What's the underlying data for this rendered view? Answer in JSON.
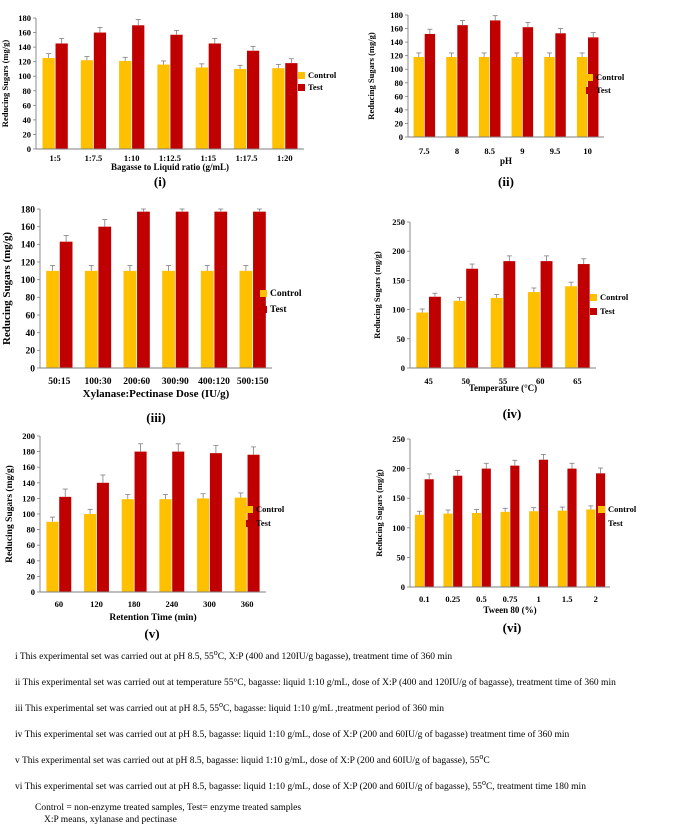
{
  "colors": {
    "control": "#FFC000",
    "test": "#C00000",
    "axis": "#7f7f7f",
    "grid": "#d0d0d0",
    "error": "#7f7f7f"
  },
  "chart_data": [
    {
      "id": "i",
      "type": "bar",
      "panel_label": "(i)",
      "xlabel": "Bagasse to Liquid ratio (g/mL)",
      "ylabel": "Reducing Sugars  (mg/g)",
      "categories": [
        "1:5",
        "1:7.5",
        "1:10",
        "1:12.5",
        "1:15",
        "1:17.5",
        "1:20"
      ],
      "ylim": [
        0,
        180
      ],
      "yticks": [
        0,
        20,
        40,
        60,
        80,
        100,
        120,
        140,
        160,
        180
      ],
      "series": [
        {
          "name": "Control",
          "values": [
            125,
            122,
            121,
            116,
            112,
            110,
            111
          ],
          "errors": [
            6,
            5,
            5,
            5,
            5,
            5,
            5
          ]
        },
        {
          "name": "Test",
          "values": [
            145,
            160,
            170,
            157,
            145,
            135,
            118
          ],
          "errors": [
            7,
            7,
            8,
            6,
            7,
            6,
            6
          ]
        }
      ],
      "legend": [
        "Control",
        "Test"
      ]
    },
    {
      "id": "ii",
      "type": "bar",
      "panel_label": "(ii)",
      "xlabel": "pH",
      "ylabel": "Reducing Sugars (mg/g)",
      "categories": [
        "7.5",
        "8",
        "8.5",
        "9",
        "9.5",
        "10"
      ],
      "ylim": [
        0,
        180
      ],
      "yticks": [
        0,
        20,
        40,
        60,
        80,
        100,
        120,
        140,
        160,
        180
      ],
      "series": [
        {
          "name": "Control",
          "values": [
            118,
            118,
            118,
            118,
            118,
            118
          ],
          "errors": [
            6,
            6,
            6,
            6,
            6,
            6
          ]
        },
        {
          "name": "Test",
          "values": [
            152,
            165,
            172,
            162,
            153,
            147
          ],
          "errors": [
            7,
            7,
            7,
            7,
            7,
            7
          ]
        }
      ],
      "legend": [
        "Control",
        "Test"
      ]
    },
    {
      "id": "iii",
      "type": "bar",
      "panel_label": "(iii)",
      "xlabel": "Xylanase:Pectinase Dose (IU/g)",
      "ylabel": "Reducing Sugars (mg/g)",
      "categories": [
        "50:15",
        "100:30",
        "200:60",
        "300:90",
        "400:120",
        "500:150"
      ],
      "ylim": [
        0,
        180
      ],
      "yticks": [
        0,
        20,
        40,
        60,
        80,
        100,
        120,
        140,
        160,
        180
      ],
      "series": [
        {
          "name": "Control",
          "values": [
            110,
            110,
            110,
            110,
            110,
            110
          ],
          "errors": [
            6,
            6,
            6,
            6,
            6,
            6
          ]
        },
        {
          "name": "Test",
          "values": [
            143,
            160,
            177,
            177,
            177,
            177
          ],
          "errors": [
            7,
            8,
            3,
            3,
            3,
            3
          ]
        }
      ],
      "legend": [
        "Control",
        "Test"
      ]
    },
    {
      "id": "iv",
      "type": "bar",
      "panel_label": "(iv)",
      "xlabel": "Temperature (°C)",
      "ylabel": "Reducing Sugars (mg/g)",
      "categories": [
        "45",
        "50",
        "55",
        "60",
        "65"
      ],
      "ylim": [
        0,
        250
      ],
      "yticks": [
        0,
        50,
        100,
        150,
        200,
        250
      ],
      "series": [
        {
          "name": "Control",
          "values": [
            95,
            115,
            120,
            130,
            140
          ],
          "errors": [
            6,
            6,
            6,
            7,
            7
          ]
        },
        {
          "name": "Test",
          "values": [
            122,
            170,
            183,
            183,
            178
          ],
          "errors": [
            6,
            8,
            9,
            9,
            9
          ]
        }
      ],
      "legend": [
        "Control",
        "Test"
      ]
    },
    {
      "id": "v",
      "type": "bar",
      "panel_label": "(v)",
      "xlabel": "Retention Time (min)",
      "ylabel": "Reducing Sugars (mg/g)",
      "categories": [
        "60",
        "120",
        "180",
        "240",
        "300",
        "360"
      ],
      "ylim": [
        0,
        200
      ],
      "yticks": [
        0,
        20,
        40,
        60,
        80,
        100,
        120,
        140,
        160,
        180,
        200
      ],
      "series": [
        {
          "name": "Control",
          "values": [
            90,
            100,
            119,
            119,
            120,
            121
          ],
          "errors": [
            6,
            6,
            6,
            6,
            6,
            6
          ]
        },
        {
          "name": "Test",
          "values": [
            122,
            140,
            180,
            180,
            178,
            176
          ],
          "errors": [
            10,
            10,
            10,
            10,
            10,
            10
          ]
        }
      ],
      "legend": [
        "Control",
        "Test"
      ]
    },
    {
      "id": "vi",
      "type": "bar",
      "panel_label": "(vi)",
      "xlabel": "Tween 80 (%)",
      "ylabel": "Reducing Sugars (mg/g)",
      "categories": [
        "0.1",
        "0.25",
        "0.5",
        "0.75",
        "1",
        "1.5",
        "2"
      ],
      "ylim": [
        0,
        250
      ],
      "yticks": [
        0,
        50,
        100,
        150,
        200,
        250
      ],
      "series": [
        {
          "name": "Control",
          "values": [
            122,
            124,
            125,
            127,
            128,
            129,
            131
          ],
          "errors": [
            6,
            6,
            6,
            6,
            6,
            6,
            6
          ]
        },
        {
          "name": "Test",
          "values": [
            182,
            188,
            200,
            205,
            215,
            200,
            192
          ],
          "errors": [
            9,
            9,
            9,
            9,
            9,
            9,
            9
          ]
        }
      ],
      "legend": [
        "Control",
        "Test"
      ]
    }
  ],
  "notes": [
    {
      "prefix": "i This experimental set was carried out at pH 8.5, 55",
      "sup": "o",
      "rest": "C, X:P (400 and 120IU/g bagasse), treatment time of 360 min"
    },
    {
      "prefix": "ii This experimental set was carried out at temperature 55°C, bagasse: liquid 1:10 g/mL, dose of X:P (400 and 120IU/g of bagasse), treatment time of 360 min",
      "sup": "",
      "rest": ""
    },
    {
      "prefix": "iii This experimental set was carried out at pH 8.5, 55",
      "sup": "o",
      "rest": "C, bagasse: liquid 1:10 g/mL ,treatment period of 360 min"
    },
    {
      "prefix": "iv This experimental set was carried out at pH 8.5, bagasse: liquid 1:10 g/mL, dose of X:P (200 and 60IU/g of bagasse) treatment time of 360 min",
      "sup": "",
      "rest": ""
    },
    {
      "prefix": "v This experimental set was carried out at pH 8.5, bagasse: liquid 1:10 g/mL, dose of X:P (200 and 60IU/g of bagasse), 55",
      "sup": "o",
      "rest": "C"
    },
    {
      "prefix": "vi This experimental set was carried out at pH 8.5, bagasse: liquid 1:10 g/mL, dose of X:P (200 and 60IU/g of bagasse), 55",
      "sup": "o",
      "rest": "C, treatment time 180 min"
    }
  ],
  "legend_note": {
    "line1": "Control = non-enzyme treated samples, Test= enzyme treated samples",
    "line2": "X:P means, xylanase and pectinase"
  }
}
